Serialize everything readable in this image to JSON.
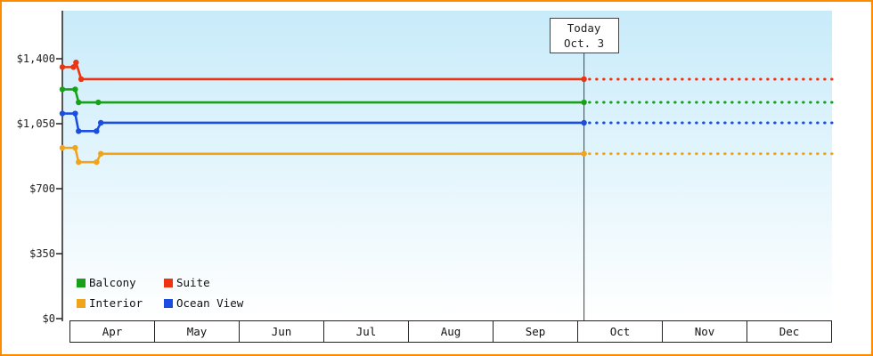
{
  "frame": {
    "border_color": "#ff8c00"
  },
  "today": {
    "line1": "Today",
    "line2": "Oct. 3"
  },
  "chart_data": {
    "type": "line",
    "title": "",
    "x_axis": {
      "months": [
        "Apr",
        "May",
        "Jun",
        "Jul",
        "Aug",
        "Sep",
        "Oct",
        "Nov",
        "Dec"
      ]
    },
    "x_range_months": [
      0,
      9
    ],
    "y_axis": {
      "ticks": [
        "$1,400",
        "$1,050",
        "$700",
        "$350",
        "$0"
      ],
      "tick_values": [
        1400,
        1050,
        700,
        350,
        0
      ],
      "max": 1400
    },
    "today": {
      "line1": "Today",
      "line2": "Oct. 3",
      "month_position": 6.1
    },
    "grid": "off",
    "legend_position": "bottom-left",
    "background_gradient": [
      "#c8ebfa",
      "#ffffff"
    ],
    "axis_color": "#222222",
    "today_line_color": "#444444",
    "series": [
      {
        "name": "Suite",
        "color": "#ee3311",
        "points": [
          [
            0,
            1355
          ],
          [
            0.13,
            1355
          ],
          [
            0.16,
            1380
          ],
          [
            0.22,
            1290
          ],
          [
            6.1,
            1290
          ]
        ],
        "projection_value": 1290
      },
      {
        "name": "Balcony",
        "color": "#18a018",
        "points": [
          [
            0,
            1235
          ],
          [
            0.15,
            1235
          ],
          [
            0.19,
            1165
          ],
          [
            0.42,
            1165
          ],
          [
            6.1,
            1165
          ]
        ],
        "projection_value": 1165
      },
      {
        "name": "Ocean View",
        "color": "#1b4de0",
        "points": [
          [
            0,
            1105
          ],
          [
            0.15,
            1105
          ],
          [
            0.19,
            1010
          ],
          [
            0.4,
            1010
          ],
          [
            0.45,
            1055
          ],
          [
            6.1,
            1055
          ]
        ],
        "projection_value": 1055
      },
      {
        "name": "Interior",
        "color": "#f0a41c",
        "points": [
          [
            0,
            920
          ],
          [
            0.15,
            920
          ],
          [
            0.19,
            843
          ],
          [
            0.4,
            843
          ],
          [
            0.45,
            888
          ],
          [
            6.1,
            888
          ]
        ],
        "projection_value": 888
      }
    ]
  },
  "legend": {
    "items": [
      {
        "label": "Balcony",
        "color": "#18a018"
      },
      {
        "label": "Suite",
        "color": "#ee3311"
      },
      {
        "label": "Interior",
        "color": "#f0a41c"
      },
      {
        "label": "Ocean View",
        "color": "#1b4de0"
      }
    ]
  }
}
